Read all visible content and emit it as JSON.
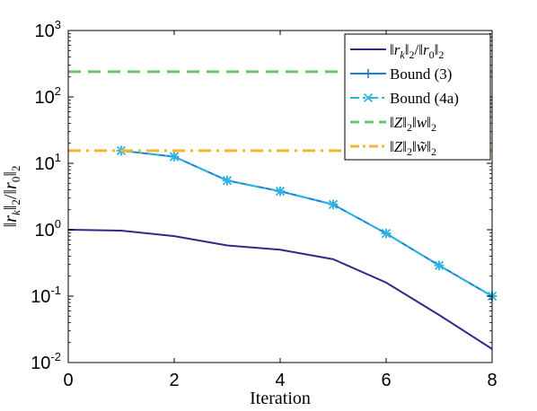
{
  "chart_data": {
    "type": "line",
    "xlabel": "Iteration",
    "ylabel": "‖r_k‖₂/‖r₀‖₂",
    "xlim": [
      0,
      8
    ],
    "ylim": [
      0.01,
      1000
    ],
    "yscale": "log",
    "xticks": [
      "0",
      "2",
      "4",
      "6",
      "8"
    ],
    "yticks": [
      {
        "base": "10",
        "exp": "-2",
        "value": 0.01
      },
      {
        "base": "10",
        "exp": "-1",
        "value": 0.1
      },
      {
        "base": "10",
        "exp": "0",
        "value": 1
      },
      {
        "base": "10",
        "exp": "1",
        "value": 10
      },
      {
        "base": "10",
        "exp": "2",
        "value": 100
      },
      {
        "base": "10",
        "exp": "3",
        "value": 1000
      }
    ],
    "legend_position": "top-right",
    "series": [
      {
        "name": "‖r_k‖₂/‖r₀‖₂",
        "color": "#2e2a86",
        "style": "solid",
        "marker": "none",
        "x": [
          0,
          1,
          2,
          3,
          4,
          5,
          6,
          7,
          8
        ],
        "y": [
          1.0,
          0.97,
          0.8,
          0.58,
          0.5,
          0.36,
          0.16,
          0.052,
          0.016
        ]
      },
      {
        "name": "Bound (3)",
        "color": "#1a7fd6",
        "style": "solid",
        "marker": "plus",
        "x": [
          1,
          2,
          3,
          4,
          5,
          6,
          7,
          8
        ],
        "y": [
          15.5,
          12.6,
          5.5,
          3.8,
          2.4,
          0.88,
          0.29,
          0.1
        ]
      },
      {
        "name": "Bound (4a)",
        "color": "#2cb5e0",
        "style": "dashdot",
        "marker": "x",
        "x": [
          1,
          2,
          3,
          4,
          5,
          6,
          7,
          8
        ],
        "y": [
          15.5,
          12.6,
          5.5,
          3.8,
          2.4,
          0.88,
          0.29,
          0.1
        ]
      },
      {
        "name": "‖Z‖₂‖w‖₂",
        "color": "#6cc56c",
        "style": "dashed",
        "marker": "none",
        "x": [
          0,
          8
        ],
        "y": [
          240,
          240
        ]
      },
      {
        "name": "‖Z‖₂‖w̃‖₂",
        "color": "#f0b830",
        "style": "dashdot",
        "marker": "none",
        "x": [
          0,
          8
        ],
        "y": [
          15.5,
          15.5
        ]
      }
    ]
  }
}
